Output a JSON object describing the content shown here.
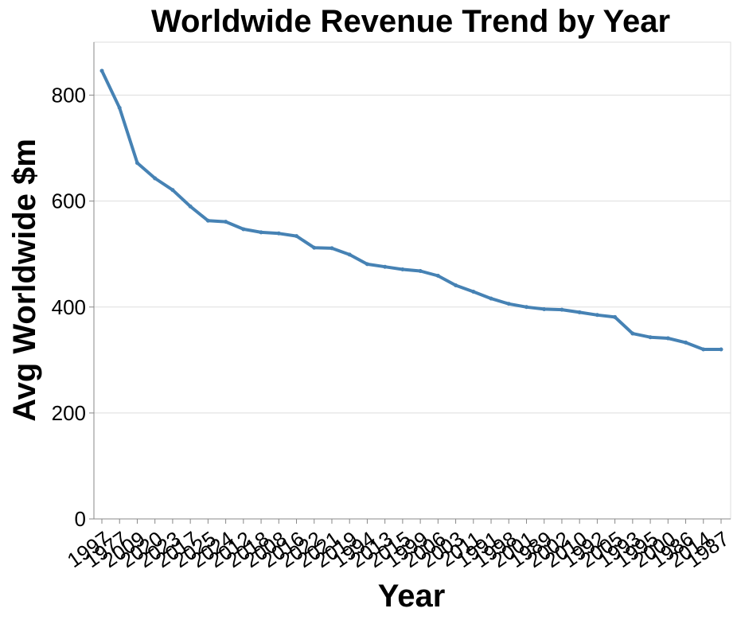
{
  "chart_data": {
    "type": "line",
    "title": "Worldwide Revenue Trend by Year",
    "xlabel": "Year",
    "ylabel": "Avg Worldwide $m",
    "ylim": [
      0,
      900
    ],
    "yticks": [
      0,
      200,
      400,
      600,
      800
    ],
    "grid": true,
    "color": "#4682b4",
    "categories": [
      "1997",
      "1977",
      "2009",
      "2020",
      "2023",
      "2017",
      "2025",
      "2024",
      "2012",
      "2018",
      "2008",
      "2016",
      "2022",
      "2021",
      "2019",
      "1994",
      "2013",
      "2015",
      "1999",
      "2006",
      "2003",
      "2011",
      "1991",
      "1998",
      "2001",
      "1989",
      "2002",
      "2010",
      "1992",
      "2005",
      "1993",
      "1995",
      "2000",
      "1986",
      "2014",
      "1987"
    ],
    "series": [
      {
        "values": [
          846,
          776,
          672,
          643,
          621,
          590,
          563,
          561,
          547,
          541,
          539,
          534,
          512,
          511,
          499,
          481,
          476,
          471,
          468,
          459,
          441,
          429,
          416,
          406,
          400,
          396,
          395,
          390,
          385,
          381,
          350,
          343,
          341,
          333,
          320,
          320
        ]
      }
    ]
  }
}
